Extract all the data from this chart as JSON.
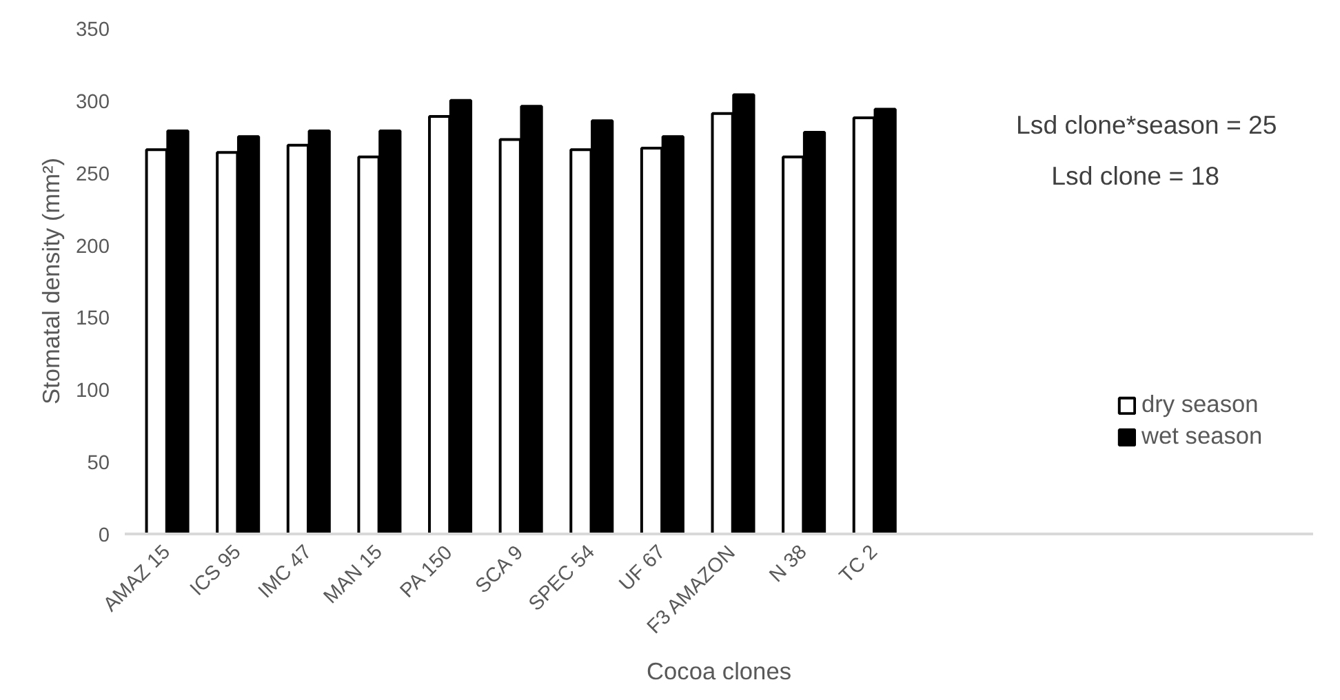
{
  "chart_data": {
    "type": "bar",
    "xlabel": "Cocoa clones",
    "ylabel": "Stomatal density (mm²)",
    "categories": [
      "AMAZ 15",
      "ICS 95",
      "IMC 47",
      "MAN 15",
      "PA 150",
      "SCA 9",
      "SPEC 54",
      "UF 67",
      "F3 AMAZON",
      "N 38",
      "TC 2"
    ],
    "series": [
      {
        "name": "dry season",
        "color": "#ffffff",
        "values": [
          266,
          264,
          269,
          261,
          289,
          273,
          266,
          267,
          291,
          261,
          288
        ]
      },
      {
        "name": "wet season",
        "color": "#000000",
        "values": [
          279,
          275,
          279,
          279,
          300,
          296,
          286,
          275,
          304,
          278,
          294
        ]
      }
    ],
    "ylim": [
      0,
      350
    ],
    "yticks": [
      0,
      50,
      100,
      150,
      200,
      250,
      300,
      350
    ],
    "grid": false,
    "legend": "right",
    "annotations": [
      "Lsd clone*season = 25",
      "Lsd clone = 18"
    ]
  }
}
